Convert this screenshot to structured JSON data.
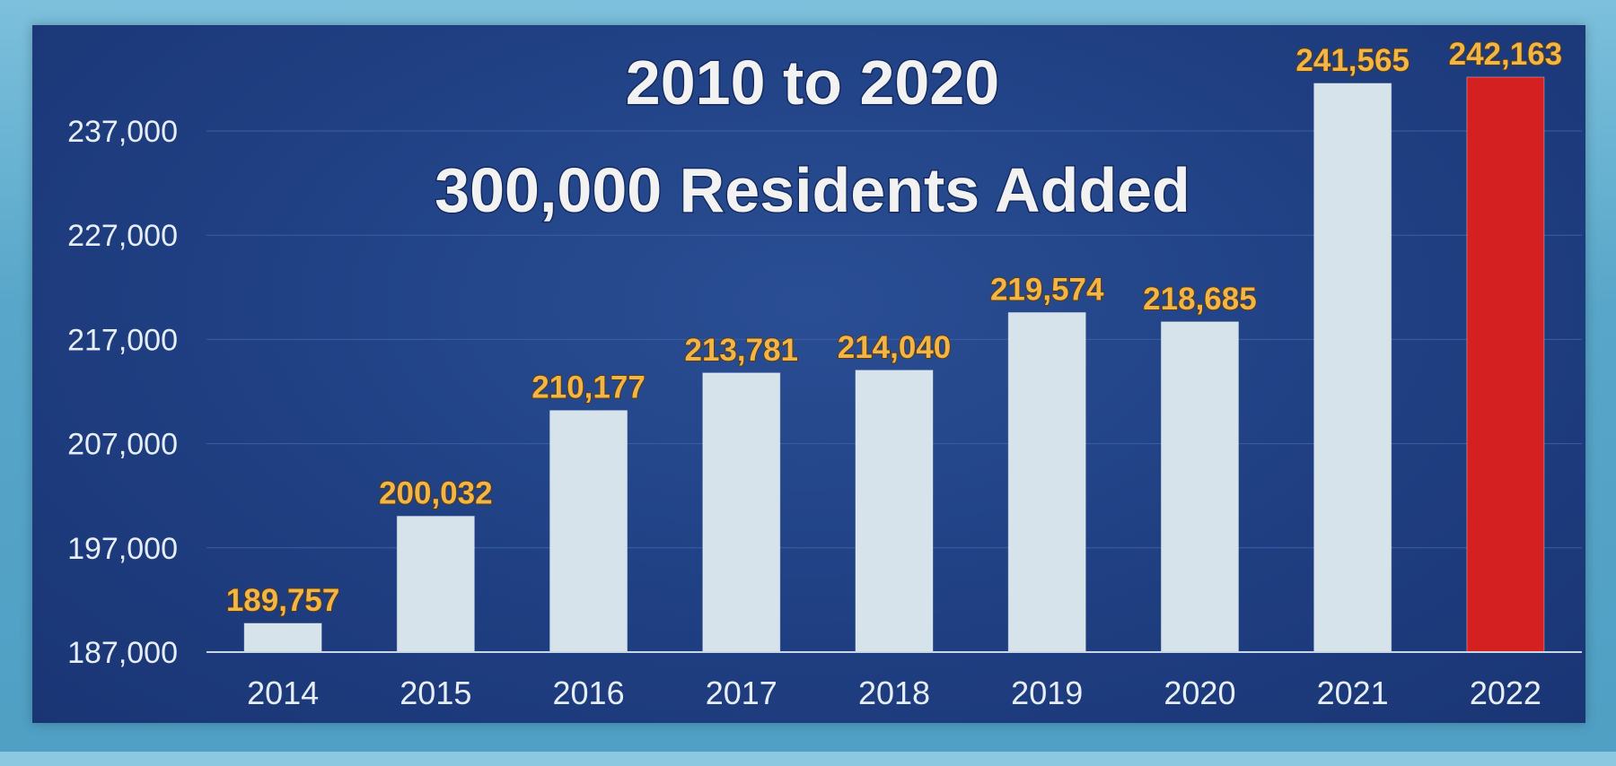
{
  "chart_data": {
    "type": "bar",
    "title_line1": "2010 to 2020",
    "title_line2": "300,000 Residents Added",
    "categories": [
      "2014",
      "2015",
      "2016",
      "2017",
      "2018",
      "2019",
      "2020",
      "2021",
      "2022"
    ],
    "values": [
      189757,
      200032,
      210177,
      213781,
      214040,
      219574,
      218685,
      241565,
      242163
    ],
    "value_labels": [
      "189,757",
      "200,032",
      "210,177",
      "213,781",
      "214,040",
      "219,574",
      "218,685",
      "241,565",
      "242,163"
    ],
    "yticks": [
      187000,
      197000,
      207000,
      217000,
      227000,
      237000
    ],
    "ytick_labels": [
      "187,000",
      "197,000",
      "207,000",
      "217,000",
      "227,000",
      "237,000"
    ],
    "ylim": [
      187000,
      243000
    ],
    "xlabel": "",
    "ylabel": "",
    "grid": true,
    "bar_color": "#d6e3ea",
    "highlight_color": "#d42020",
    "highlight_index": 8,
    "label_color": "#f2b547",
    "panel_color": "#1f3f82"
  }
}
